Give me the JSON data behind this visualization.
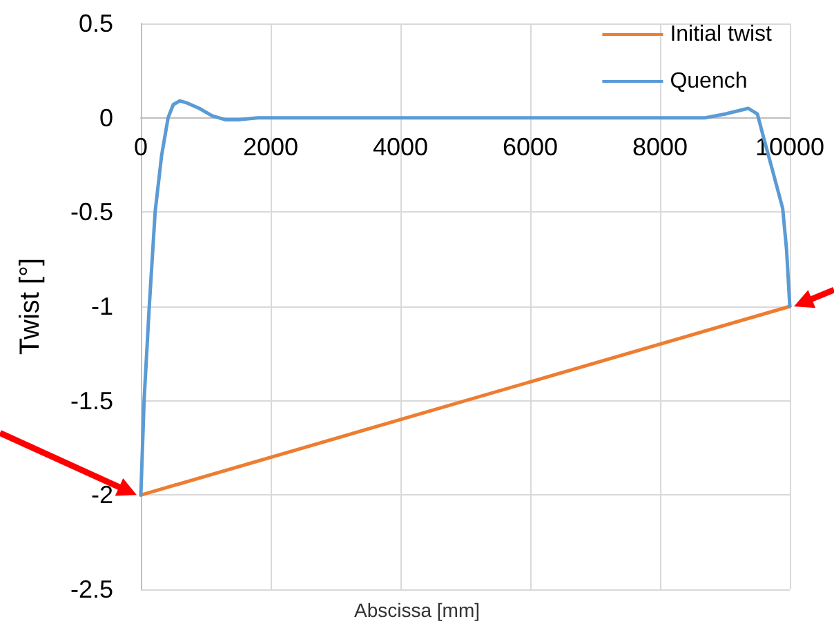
{
  "chart_data": {
    "type": "line",
    "xlabel": "Abscissa [mm]",
    "ylabel": "Twist [°]",
    "xlim": [
      0,
      10000
    ],
    "xticks": [
      0,
      {
        "value": 2000,
        "label": "2000"
      },
      {
        "value": 4000,
        "label": "4000"
      },
      {
        "value": 6000,
        "label": "6000"
      },
      {
        "value": 8000,
        "label": "8000"
      },
      {
        "value": 10000,
        "label": "10000"
      }
    ],
    "ylim": [
      -2.5,
      0.5
    ],
    "yticks": [
      -2.5,
      -2,
      -1.5,
      -1,
      -0.5,
      0,
      0.5
    ],
    "grid": true,
    "legend": "top right",
    "marker": "none",
    "line_style": "solid",
    "series": [
      {
        "name": "Initial twist",
        "color": "#ed7d31",
        "x": [
          0,
          10000
        ],
        "values": [
          -2,
          -1
        ]
      },
      {
        "name": "Quench",
        "color": "#5b9bd5",
        "x": [
          0,
          50,
          130,
          220,
          320,
          420,
          500,
          600,
          700,
          900,
          1100,
          1300,
          1500,
          1800,
          2000,
          8000,
          8200,
          8700,
          9000,
          9360,
          9500,
          9600,
          9750,
          9890,
          9950,
          10000
        ],
        "values": [
          -2,
          -1.5,
          -1,
          -0.5,
          -0.2,
          0,
          0.07,
          0.09,
          0.08,
          0.05,
          0.01,
          -0.01,
          -0.01,
          0,
          0,
          0,
          0,
          0,
          0.02,
          0.05,
          0.02,
          -0.11,
          -0.3,
          -0.48,
          -0.7,
          -1
        ]
      }
    ]
  }
}
